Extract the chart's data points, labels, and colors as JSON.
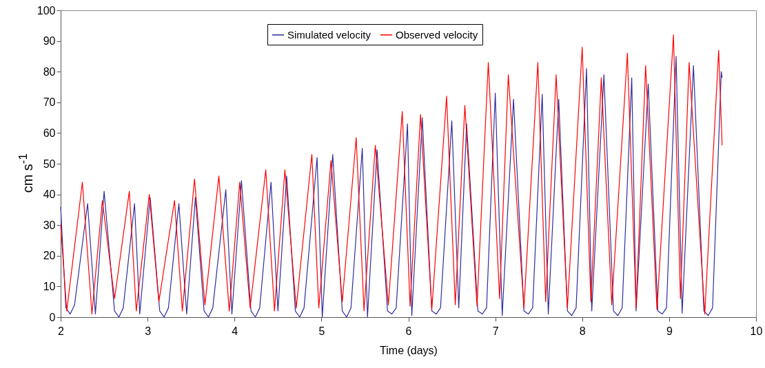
{
  "chart_data": {
    "type": "line",
    "xlabel": "Time (days)",
    "ylabel": "cm s$^{-1}$",
    "xlim": [
      2,
      10
    ],
    "xticks": [
      2,
      3,
      4,
      5,
      6,
      7,
      8,
      9,
      10
    ],
    "ylim": [
      0,
      100
    ],
    "yticks": [
      0,
      10,
      20,
      30,
      40,
      50,
      60,
      70,
      80,
      90,
      100
    ],
    "grid": false,
    "legend": "top",
    "marker": "none",
    "line_style": "solid",
    "series": [
      {
        "name": "Simulated velocity",
        "color": "#2e2e9e",
        "x": [
          2.0,
          2.06,
          2.11,
          2.16,
          2.31,
          2.4,
          2.5,
          2.62,
          2.67,
          2.72,
          2.85,
          2.91,
          3.03,
          3.14,
          3.19,
          3.24,
          3.36,
          3.45,
          3.55,
          3.65,
          3.7,
          3.75,
          3.9,
          3.97,
          4.08,
          4.19,
          4.24,
          4.29,
          4.42,
          4.5,
          4.6,
          4.7,
          4.75,
          4.8,
          4.95,
          5.01,
          5.13,
          5.24,
          5.29,
          5.34,
          5.47,
          5.53,
          5.64,
          5.76,
          5.81,
          5.86,
          5.99,
          6.04,
          6.16,
          6.27,
          6.32,
          6.37,
          6.5,
          6.58,
          6.67,
          6.8,
          6.85,
          6.9,
          7.0,
          7.08,
          7.21,
          7.33,
          7.38,
          7.43,
          7.54,
          7.61,
          7.73,
          7.83,
          7.88,
          7.93,
          8.05,
          8.11,
          8.25,
          8.36,
          8.41,
          8.46,
          8.57,
          8.62,
          8.76,
          8.87,
          8.92,
          8.97,
          9.08,
          9.15,
          9.28,
          9.4,
          9.45,
          9.5,
          9.6,
          9.61
        ],
        "values": [
          36,
          3,
          1,
          4,
          37,
          1,
          41,
          2,
          0,
          3,
          37,
          1,
          39,
          2,
          0,
          3,
          37,
          1,
          39,
          2,
          0,
          3,
          41.5,
          1,
          44.5,
          2,
          0,
          3,
          44,
          2,
          46,
          2,
          0,
          3,
          52,
          0,
          53,
          2,
          0,
          3,
          55,
          0,
          54.5,
          2,
          1,
          3,
          63,
          0.5,
          65,
          2,
          1,
          3,
          64,
          3,
          63,
          2,
          1,
          3,
          73,
          0.5,
          71,
          2,
          1,
          3,
          72.6,
          1,
          71,
          2,
          0.5,
          3,
          81,
          2,
          79,
          2,
          0.5,
          3,
          78,
          2,
          76,
          2,
          1,
          3,
          85,
          1.3,
          82,
          2,
          0.5,
          3,
          80,
          78
        ]
      },
      {
        "name": "Observed velocity",
        "color": "#ff0000",
        "x": [
          2.0,
          2.07,
          2.25,
          2.36,
          2.48,
          2.62,
          2.79,
          2.87,
          3.02,
          3.13,
          3.31,
          3.4,
          3.54,
          3.66,
          3.82,
          3.94,
          4.06,
          4.18,
          4.36,
          4.46,
          4.58,
          4.71,
          4.89,
          4.97,
          5.11,
          5.24,
          5.4,
          5.49,
          5.62,
          5.77,
          5.93,
          6.02,
          6.14,
          6.27,
          6.44,
          6.54,
          6.65,
          6.79,
          6.92,
          7.05,
          7.15,
          7.33,
          7.49,
          7.58,
          7.7,
          7.83,
          8.0,
          8.1,
          8.22,
          8.34,
          8.52,
          8.62,
          8.73,
          8.86,
          9.05,
          9.13,
          9.23,
          9.41,
          9.57,
          9.61
        ],
        "values": [
          30,
          2,
          44,
          1,
          38,
          6,
          41,
          2,
          40,
          5,
          38,
          2,
          45,
          4,
          46,
          2,
          44,
          3,
          48,
          2,
          48,
          3,
          53,
          3,
          51,
          5,
          58.5,
          2,
          56,
          4,
          67,
          3.6,
          66,
          2.5,
          72,
          4,
          69,
          3.6,
          83,
          6,
          79,
          3,
          83,
          5,
          79,
          3,
          88,
          5,
          78,
          4,
          86,
          3,
          82,
          2.5,
          92,
          6,
          83,
          1,
          87,
          56
        ]
      }
    ]
  }
}
